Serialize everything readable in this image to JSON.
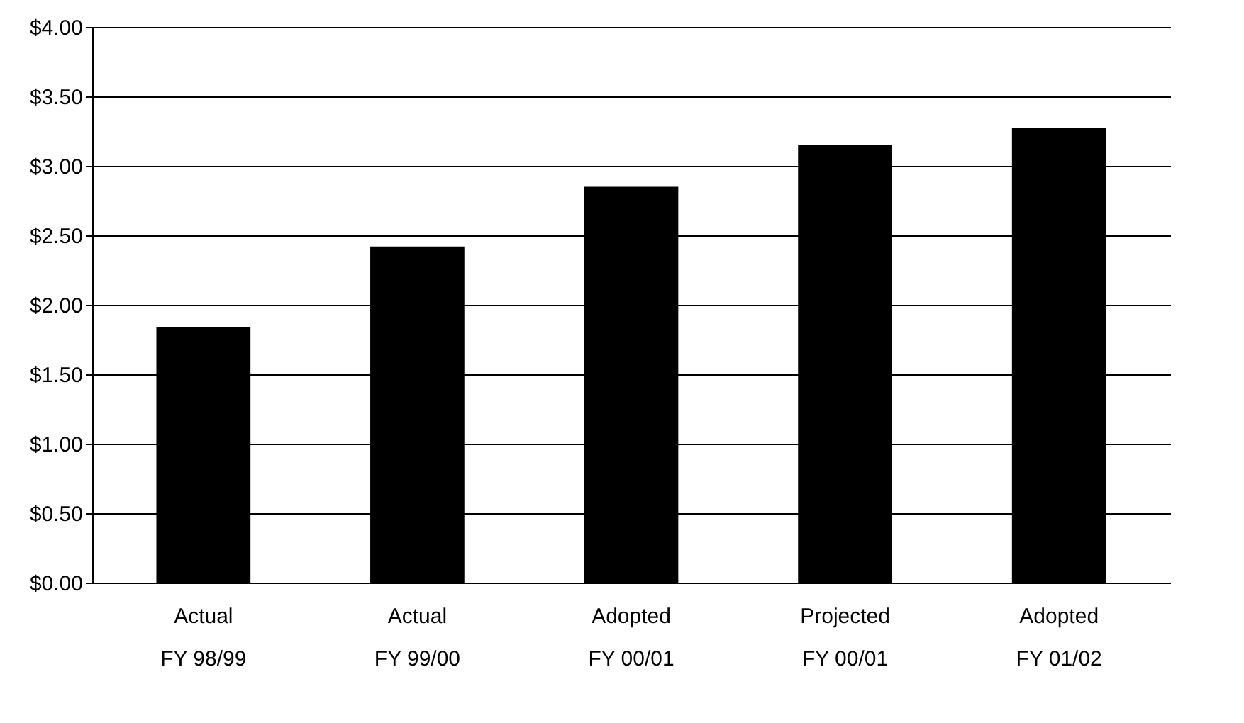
{
  "chart_data": {
    "type": "bar",
    "categories": [
      "Actual FY 98/99",
      "Actual FY 99/00",
      "Adopted FY 00/01",
      "Projected FY 00/01",
      "Adopted FY 01/02"
    ],
    "values": [
      1.84,
      2.42,
      2.85,
      3.15,
      3.27
    ],
    "color": "#000000",
    "ylim": [
      0,
      4
    ],
    "yticks": [
      {
        "value": 0,
        "label": "$0.00"
      },
      {
        "value": 0.5,
        "label": "$0.50"
      },
      {
        "value": 1,
        "label": "$1.00"
      },
      {
        "value": 1.5,
        "label": "$1.50"
      },
      {
        "value": 2,
        "label": "$2.00"
      },
      {
        "value": 2.5,
        "label": "$2.50"
      },
      {
        "value": 3,
        "label": "$3.00"
      },
      {
        "value": 3.5,
        "label": "$3.50"
      },
      {
        "value": 4,
        "label": "$4.00"
      }
    ],
    "grid": "y"
  }
}
